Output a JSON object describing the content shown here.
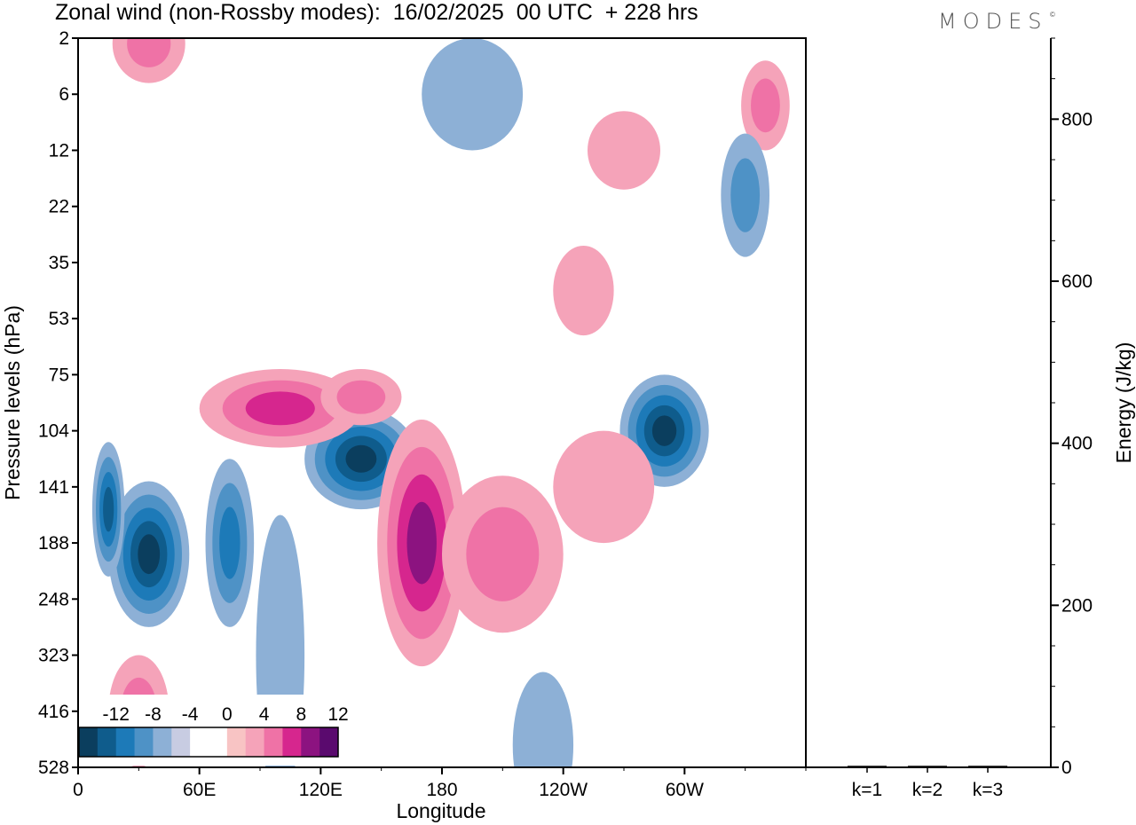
{
  "header": {
    "title": "Zonal wind (non-Rossby modes):  16/02/2025  00 UTC  + 228 hrs",
    "logo": "MODES",
    "logo_mark": "©"
  },
  "chart_data": [
    {
      "type": "heatmap",
      "title": "Zonal wind (non-Rossby modes):  16/02/2025  00 UTC  + 228 hrs",
      "xlabel": "Longitude",
      "ylabel": "Pressure levels (hPa)",
      "x_ticks": [
        "0",
        "60E",
        "120E",
        "180",
        "120W",
        "60W"
      ],
      "x_tick_values": [
        0,
        60,
        120,
        180,
        240,
        300
      ],
      "xlim": [
        0,
        360
      ],
      "y_levels": [
        "2",
        "6",
        "12",
        "22",
        "35",
        "53",
        "75",
        "104",
        "141",
        "188",
        "248",
        "323",
        "416",
        "528"
      ],
      "y_inverted": true,
      "colorbar": {
        "labels": [
          "-12",
          "-8",
          "-4",
          "0",
          "4",
          "8",
          "12"
        ],
        "colors": [
          "#0b3e5e",
          "#0f5c8c",
          "#1d7ab8",
          "#4e92c6",
          "#8db0d6",
          "#c8cce2",
          "#ffffff",
          "#ffffff",
          "#f8c4c4",
          "#f5a3b9",
          "#ef72a6",
          "#d6268e",
          "#8c1380",
          "#5a0a6e"
        ]
      },
      "features": [
        {
          "lon": 35,
          "level_index": 9.2,
          "value": -11,
          "lon_radius": 20,
          "level_radius": 1.3
        },
        {
          "lon": 15,
          "level_index": 8.4,
          "value": -8,
          "lon_radius": 8,
          "level_radius": 1.2
        },
        {
          "lon": 75,
          "level_index": 9.0,
          "value": -6,
          "lon_radius": 12,
          "level_radius": 1.5
        },
        {
          "lon": 140,
          "level_index": 7.5,
          "value": -11,
          "lon_radius": 28,
          "level_radius": 0.9
        },
        {
          "lon": 290,
          "level_index": 7.0,
          "value": -10,
          "lon_radius": 22,
          "level_radius": 1.0
        },
        {
          "lon": 100,
          "level_index": 6.6,
          "value": 7,
          "lon_radius": 40,
          "level_radius": 0.7
        },
        {
          "lon": 170,
          "level_index": 9.0,
          "value": 9,
          "lon_radius": 22,
          "level_radius": 2.2
        },
        {
          "lon": 140,
          "level_index": 6.4,
          "value": 5,
          "lon_radius": 20,
          "level_radius": 0.5
        },
        {
          "lon": 35,
          "level_index": 0.1,
          "value": 5,
          "lon_radius": 18,
          "level_radius": 0.7
        },
        {
          "lon": 340,
          "level_index": 1.2,
          "value": 5,
          "lon_radius": 12,
          "level_radius": 0.8
        },
        {
          "lon": 330,
          "level_index": 2.8,
          "value": -5,
          "lon_radius": 12,
          "level_radius": 1.1
        },
        {
          "lon": 210,
          "level_index": 9.2,
          "value": 4,
          "lon_radius": 30,
          "level_radius": 1.4
        },
        {
          "lon": 30,
          "level_index": 12.0,
          "value": 4,
          "lon_radius": 15,
          "level_radius": 1.0
        },
        {
          "lon": 230,
          "level_index": 12.6,
          "value": -3,
          "lon_radius": 15,
          "level_radius": 1.3
        },
        {
          "lon": 100,
          "level_index": 11.0,
          "value": -3,
          "lon_radius": 12,
          "level_radius": 2.5
        },
        {
          "lon": 270,
          "level_index": 2.0,
          "value": 3,
          "lon_radius": 18,
          "level_radius": 0.7
        },
        {
          "lon": 195,
          "level_index": 1.0,
          "value": -3,
          "lon_radius": 25,
          "level_radius": 1.0
        },
        {
          "lon": 250,
          "level_index": 4.5,
          "value": 3,
          "lon_radius": 15,
          "level_radius": 0.8
        },
        {
          "lon": 260,
          "level_index": 8.0,
          "value": 3,
          "lon_radius": 25,
          "level_radius": 1.0
        }
      ]
    },
    {
      "type": "bar",
      "categories": [
        "k=1",
        "k=2",
        "k=3"
      ],
      "values": [
        1,
        1,
        1
      ],
      "ylabel": "Energy (J/kg)",
      "ylim": [
        0,
        900
      ],
      "y_ticks": [
        0,
        200,
        400,
        600,
        800
      ]
    }
  ]
}
